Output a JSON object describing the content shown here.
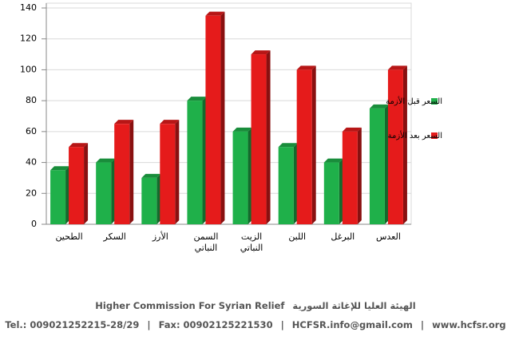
{
  "chart_data": {
    "type": "bar",
    "categories": [
      "الطحين",
      "السكر",
      "الأرز",
      "السمن النباتي",
      "الزيت النباتي",
      "اللبن",
      "البرغل",
      "العدس"
    ],
    "series": [
      {
        "name": "السعر قبل الأزمة",
        "color": "#1fb04a",
        "values": [
          35,
          40,
          30,
          80,
          60,
          50,
          40,
          75
        ]
      },
      {
        "name": "السعر بعد الأزمة",
        "color": "#e51b1b",
        "values": [
          50,
          65,
          65,
          135,
          110,
          100,
          60,
          100
        ]
      }
    ],
    "ylim": [
      0,
      140
    ],
    "yticks": [
      0,
      20,
      40,
      60,
      80,
      100,
      120,
      140
    ],
    "grid": true,
    "legend": "right"
  },
  "footer": {
    "org_en": "Higher Commission For Syrian Relief",
    "org_ar": "الهيئة العليا للإغاثة السورية",
    "tel": "Tel.: 009021252215-28/29",
    "fax": "Fax: 00902125221530",
    "email": "HCFSR.info@gmail.com",
    "web": "www.hcfsr.org"
  }
}
